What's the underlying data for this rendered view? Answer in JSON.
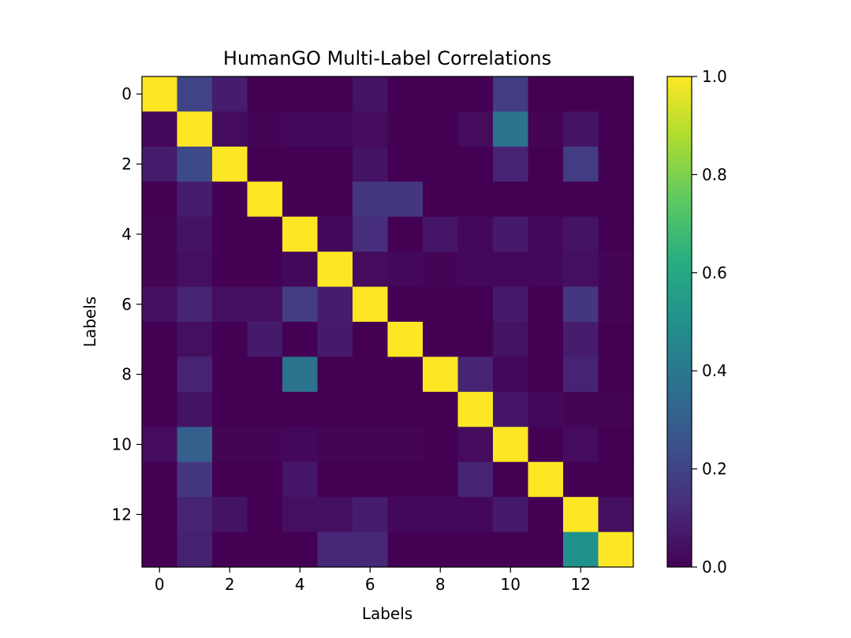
{
  "chart_data": {
    "type": "heatmap",
    "title": "HumanGO Multi-Label Correlations",
    "xlabel": "Labels",
    "ylabel": "Labels",
    "x_ticks": [
      0,
      2,
      4,
      6,
      8,
      10,
      12
    ],
    "y_ticks": [
      0,
      2,
      4,
      6,
      8,
      10,
      12
    ],
    "n_rows": 14,
    "n_cols": 14,
    "colormap": "viridis",
    "colorbar": {
      "ticks": [
        "0.0",
        "0.2",
        "0.4",
        "0.6",
        "0.8",
        "1.0"
      ],
      "range": [
        0,
        1
      ]
    },
    "values": [
      [
        1.0,
        0.2,
        0.08,
        0.0,
        0.0,
        0.0,
        0.05,
        0.0,
        0.0,
        0.0,
        0.18,
        0.0,
        0.0,
        0.0
      ],
      [
        0.02,
        1.0,
        0.03,
        0.01,
        0.02,
        0.02,
        0.03,
        0.0,
        0.0,
        0.03,
        0.38,
        0.01,
        0.05,
        0.0
      ],
      [
        0.08,
        0.22,
        1.0,
        0.0,
        0.0,
        0.0,
        0.05,
        0.0,
        0.0,
        0.0,
        0.1,
        0.0,
        0.18,
        0.0
      ],
      [
        0.0,
        0.08,
        0.0,
        1.0,
        0.0,
        0.0,
        0.16,
        0.16,
        0.0,
        0.0,
        0.0,
        0.0,
        0.0,
        0.0
      ],
      [
        0.01,
        0.05,
        0.0,
        0.0,
        1.0,
        0.02,
        0.13,
        0.0,
        0.06,
        0.02,
        0.07,
        0.02,
        0.05,
        0.0
      ],
      [
        0.01,
        0.04,
        0.0,
        0.0,
        0.02,
        1.0,
        0.03,
        0.02,
        0.01,
        0.02,
        0.02,
        0.02,
        0.04,
        0.01
      ],
      [
        0.04,
        0.1,
        0.04,
        0.04,
        0.18,
        0.08,
        1.0,
        0.0,
        0.0,
        0.0,
        0.07,
        0.0,
        0.16,
        0.01
      ],
      [
        0.0,
        0.04,
        0.0,
        0.07,
        0.0,
        0.07,
        0.0,
        1.0,
        0.0,
        0.0,
        0.05,
        0.0,
        0.08,
        0.0
      ],
      [
        0.0,
        0.1,
        0.0,
        0.0,
        0.38,
        0.0,
        0.0,
        0.0,
        1.0,
        0.1,
        0.02,
        0.0,
        0.1,
        0.0
      ],
      [
        0.0,
        0.05,
        0.0,
        0.0,
        0.0,
        0.0,
        0.0,
        0.0,
        0.0,
        1.0,
        0.06,
        0.02,
        0.01,
        0.01
      ],
      [
        0.03,
        0.3,
        0.01,
        0.01,
        0.02,
        0.01,
        0.01,
        0.01,
        0.0,
        0.03,
        1.0,
        0.0,
        0.03,
        0.0
      ],
      [
        0.0,
        0.16,
        0.0,
        0.0,
        0.06,
        0.0,
        0.0,
        0.0,
        0.0,
        0.1,
        0.0,
        1.0,
        0.0,
        0.0
      ],
      [
        0.0,
        0.1,
        0.05,
        0.0,
        0.04,
        0.04,
        0.08,
        0.02,
        0.02,
        0.02,
        0.07,
        0.0,
        1.0,
        0.04
      ],
      [
        0.0,
        0.09,
        0.0,
        0.0,
        0.0,
        0.11,
        0.11,
        0.0,
        0.0,
        0.0,
        0.0,
        0.0,
        0.5,
        1.0
      ]
    ]
  }
}
